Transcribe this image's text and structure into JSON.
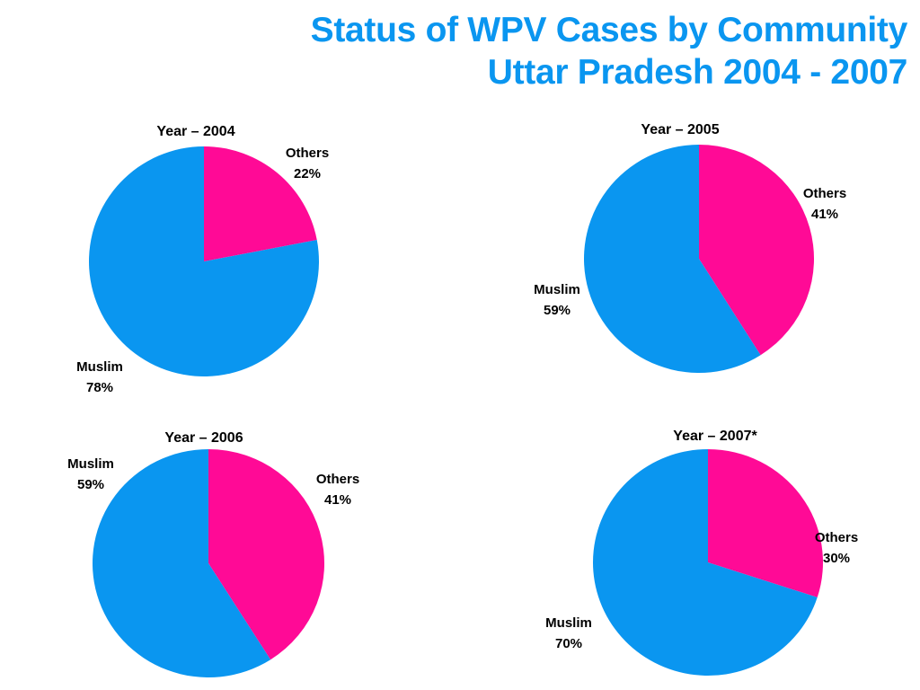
{
  "title": {
    "line1": "Status of WPV Cases by Community",
    "line2": "Uttar Pradesh 2004 - 2007"
  },
  "colors": {
    "muslim": "#0a96f0",
    "others": "#ff0a96"
  },
  "chart_data": [
    {
      "type": "pie",
      "title": "Year – 2004",
      "slices": [
        {
          "name": "Others",
          "value": 22,
          "label": "22%"
        },
        {
          "name": "Muslim",
          "value": 78,
          "label": "78%"
        }
      ]
    },
    {
      "type": "pie",
      "title": "Year – 2005",
      "slices": [
        {
          "name": "Others",
          "value": 41,
          "label": "41%"
        },
        {
          "name": "Muslim",
          "value": 59,
          "label": "59%"
        }
      ]
    },
    {
      "type": "pie",
      "title": "Year – 2006",
      "slices": [
        {
          "name": "Others",
          "value": 41,
          "label": "41%"
        },
        {
          "name": "Muslim",
          "value": 59,
          "label": "59%"
        }
      ]
    },
    {
      "type": "pie",
      "title": "Year – 2007*",
      "slices": [
        {
          "name": "Others",
          "value": 30,
          "label": "30%"
        },
        {
          "name": "Muslim",
          "value": 70,
          "label": "70%"
        }
      ]
    }
  ]
}
